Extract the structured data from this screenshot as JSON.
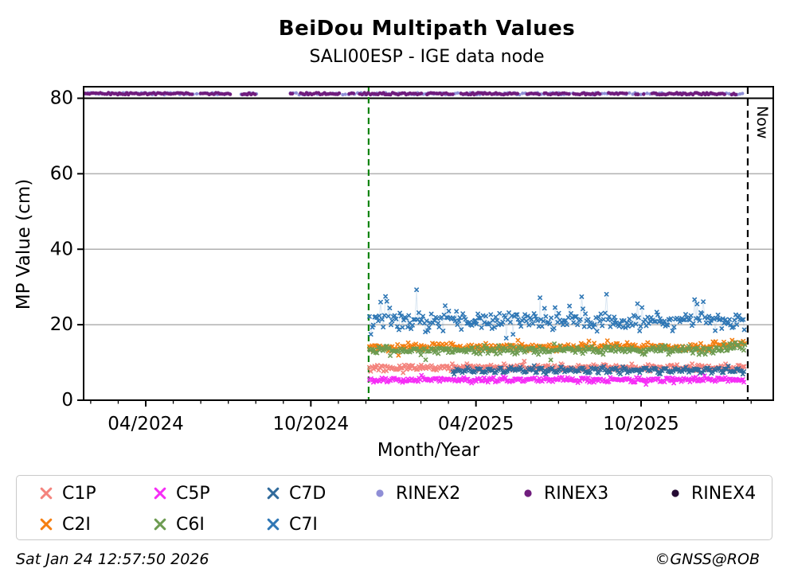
{
  "figure": {
    "timestamp": "Sat Jan 24 12:57:50 2026",
    "copyright": "©GNSS@ROB"
  },
  "chart_data": {
    "type": "scatter",
    "title": "BeiDou Multipath Values",
    "subtitle": "SALI00ESP - IGE data node",
    "xlabel": "Month/Year",
    "ylabel": "MP Value (cm)",
    "now_label": "Now",
    "grid": "horizontal-only",
    "grid_color": "#b0b0b0",
    "x_domain_decimal_years": [
      2024.062,
      2026.15
    ],
    "ylim": [
      0,
      83
    ],
    "yticks": [
      "0",
      "20",
      "40",
      "60",
      "80"
    ],
    "ytick_values": [
      0,
      20,
      40,
      60,
      80
    ],
    "grid_values": [
      20,
      40,
      60
    ],
    "cap_line_y": 80,
    "xticks": [
      {
        "year": 2024.25,
        "label": "04/2024"
      },
      {
        "year": 2024.75,
        "label": "10/2024"
      },
      {
        "year": 2025.25,
        "label": "04/2025"
      },
      {
        "year": 2025.75,
        "label": "10/2025"
      }
    ],
    "minor_xticks": "monthly",
    "events": [
      {
        "name": "data-start-line",
        "year": 2024.925,
        "style": "dashed",
        "color": "#108410"
      },
      {
        "name": "now-line",
        "year": 2026.073,
        "label": "Now",
        "style": "dashed",
        "color": "#000000"
      }
    ],
    "rinex_band": {
      "value": 81.2,
      "start": 2024.062,
      "end": 2026.063,
      "under_series": "RINEX2",
      "over_series": "RINEX3",
      "colors": {
        "RINEX2": "#8f8ed6",
        "RINEX3": "#701d7d",
        "RINEX4": "#250b33"
      },
      "gaps": [
        [
          2024.508,
          2024.537
        ],
        [
          2024.588,
          2024.684
        ]
      ]
    },
    "series": [
      {
        "name": "C7I",
        "color": "#2f77b5",
        "marker": "x",
        "start": 2024.925,
        "end": 2026.065,
        "mean": 21.0,
        "sd": 1.1,
        "out_up": [
          0.1,
          7.0
        ],
        "out_dn": [
          0.05,
          4.0
        ],
        "approx_range": [
          16,
          29
        ]
      },
      {
        "name": "C2I",
        "color": "#f57e10",
        "marker": "x",
        "start": 2024.925,
        "end": 2026.065,
        "mean": 14.1,
        "sd": 0.5,
        "out_up": [
          0.02,
          2.3
        ],
        "out_dn": [
          0.02,
          2.0
        ],
        "end_rise": 1.2
      },
      {
        "name": "C6I",
        "color": "#6d9b51",
        "marker": "x",
        "start": 2024.925,
        "end": 2026.065,
        "mean": 13.3,
        "sd": 0.5,
        "out_up": [
          0.015,
          1.5
        ],
        "out_dn": [
          0.03,
          2.6
        ],
        "end_rise": 1.1
      },
      {
        "name": "C1P",
        "color": "#f4837d",
        "marker": "x",
        "start": 2024.925,
        "end": 2026.065,
        "mean": 8.65,
        "sd": 0.42,
        "out_up": [
          0.02,
          1.2
        ],
        "out_dn": [
          0.02,
          1.2
        ]
      },
      {
        "name": "C7D",
        "color": "#306a9b",
        "marker": "x",
        "start": 2025.178,
        "end": 2026.065,
        "mean": 7.95,
        "sd": 0.3,
        "wave": [
          0.45,
          13
        ],
        "out_up": [
          0.01,
          1.0
        ],
        "out_dn": [
          0.01,
          1.0
        ]
      },
      {
        "name": "C5P",
        "color": "#f62df6",
        "marker": "x",
        "start": 2024.925,
        "end": 2026.065,
        "mean": 5.4,
        "sd": 0.3,
        "wave": [
          0.2,
          17
        ],
        "out_up": [
          0.015,
          1.3
        ],
        "out_dn": [
          0.01,
          0.8
        ]
      }
    ],
    "legend": {
      "position": "bottom",
      "entries": [
        {
          "label": "C1P",
          "color": "#f4837d",
          "marker": "x"
        },
        {
          "label": "C5P",
          "color": "#f62df6",
          "marker": "x"
        },
        {
          "label": "C7D",
          "color": "#306a9b",
          "marker": "x"
        },
        {
          "label": "RINEX2",
          "color": "#8f8ed6",
          "marker": "circle"
        },
        {
          "label": "RINEX3",
          "color": "#701d7d",
          "marker": "circle"
        },
        {
          "label": "RINEX4",
          "color": "#250b33",
          "marker": "circle"
        },
        {
          "label": "C2I",
          "color": "#f57e10",
          "marker": "x"
        },
        {
          "label": "C6I",
          "color": "#6d9b51",
          "marker": "x"
        },
        {
          "label": "C7I",
          "color": "#2f77b5",
          "marker": "x"
        }
      ]
    }
  }
}
